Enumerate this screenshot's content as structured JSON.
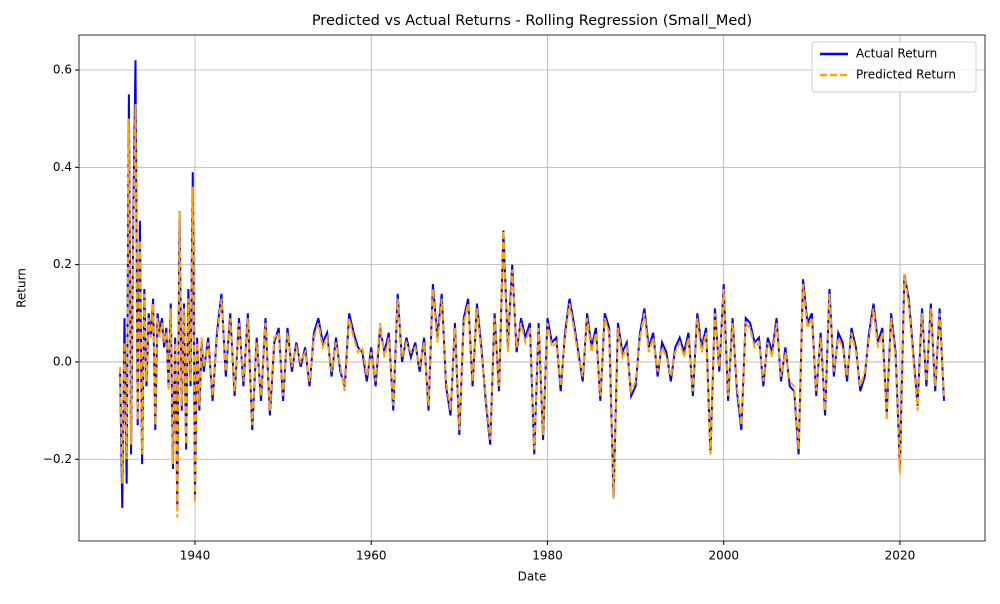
{
  "chart_data": {
    "type": "line",
    "title": "Predicted vs Actual Returns - Rolling Regression (Small_Med)",
    "x_label": "Date",
    "y_label": "Return",
    "x": [
      1931.5,
      1931.75,
      1932,
      1932.25,
      1932.5,
      1932.75,
      1933,
      1933.25,
      1933.5,
      1933.75,
      1934,
      1934.25,
      1934.5,
      1934.75,
      1935,
      1935.25,
      1935.5,
      1935.75,
      1936,
      1936.25,
      1936.5,
      1936.75,
      1937,
      1937.25,
      1937.5,
      1937.75,
      1938,
      1938.25,
      1938.5,
      1938.75,
      1939,
      1939.25,
      1939.5,
      1939.75,
      1940,
      1940.25,
      1940.5,
      1940.75,
      1941,
      1941.5,
      1942,
      1942.5,
      1943,
      1943.5,
      1944,
      1944.5,
      1945,
      1945.5,
      1946,
      1946.5,
      1947,
      1947.5,
      1948,
      1948.5,
      1949,
      1949.5,
      1950,
      1950.5,
      1951,
      1951.5,
      1952,
      1952.5,
      1953,
      1953.5,
      1954,
      1954.5,
      1955,
      1955.5,
      1956,
      1956.5,
      1957,
      1957.5,
      1958,
      1958.5,
      1959,
      1959.5,
      1960,
      1960.5,
      1961,
      1961.5,
      1962,
      1962.5,
      1963,
      1963.5,
      1964,
      1964.5,
      1965,
      1965.5,
      1966,
      1966.5,
      1967,
      1967.5,
      1968,
      1968.5,
      1969,
      1969.5,
      1970,
      1970.5,
      1971,
      1971.5,
      1972,
      1972.5,
      1973,
      1973.5,
      1974,
      1974.5,
      1975,
      1975.5,
      1976,
      1976.5,
      1977,
      1977.5,
      1978,
      1978.5,
      1979,
      1979.5,
      1980,
      1980.5,
      1981,
      1981.5,
      1982,
      1982.5,
      1983,
      1983.5,
      1984,
      1984.5,
      1985,
      1985.5,
      1986,
      1986.5,
      1987,
      1987.5,
      1988,
      1988.5,
      1989,
      1989.5,
      1990,
      1990.5,
      1991,
      1991.5,
      1992,
      1992.5,
      1993,
      1993.5,
      1994,
      1994.5,
      1995,
      1995.5,
      1996,
      1996.5,
      1997,
      1997.5,
      1998,
      1998.5,
      1999,
      1999.5,
      2000,
      2000.5,
      2001,
      2001.5,
      2002,
      2002.5,
      2003,
      2003.5,
      2004,
      2004.5,
      2005,
      2005.5,
      2006,
      2006.5,
      2007,
      2007.5,
      2008,
      2008.5,
      2009,
      2009.5,
      2010,
      2010.5,
      2011,
      2011.5,
      2012,
      2012.5,
      2013,
      2013.5,
      2014,
      2014.5,
      2015,
      2015.5,
      2016,
      2016.5,
      2017,
      2017.5,
      2018,
      2018.5,
      2019,
      2019.5,
      2020,
      2020.5,
      2021,
      2021.5,
      2022,
      2022.5,
      2023,
      2023.5,
      2024,
      2024.5,
      2025
    ],
    "series": [
      {
        "name": "Actual Return",
        "color": "#0000ff",
        "dash": false,
        "values": [
          -0.02,
          -0.3,
          0.09,
          -0.25,
          0.55,
          -0.19,
          0.3,
          0.62,
          -0.13,
          0.29,
          -0.21,
          0.15,
          -0.05,
          0.1,
          0.05,
          0.13,
          -0.14,
          0.1,
          0.06,
          0.09,
          0.03,
          0.07,
          -0.05,
          0.12,
          -0.22,
          0.05,
          -0.3,
          0.31,
          -0.1,
          0.12,
          -0.18,
          0.15,
          -0.05,
          0.39,
          -0.28,
          0.05,
          -0.1,
          0.04,
          -0.02,
          0.05,
          -0.08,
          0.06,
          0.14,
          -0.03,
          0.1,
          -0.07,
          0.09,
          -0.05,
          0.1,
          -0.14,
          0.05,
          -0.08,
          0.09,
          -0.11,
          0.04,
          0.07,
          -0.08,
          0.07,
          -0.02,
          0.04,
          -0.01,
          0.03,
          -0.05,
          0.06,
          0.09,
          0.04,
          0.06,
          -0.03,
          0.05,
          -0.02,
          -0.05,
          0.1,
          0.06,
          0.03,
          0.02,
          -0.04,
          0.03,
          -0.05,
          0.07,
          0.02,
          0.06,
          -0.1,
          0.14,
          0.0,
          0.05,
          0.01,
          0.04,
          -0.02,
          0.05,
          -0.1,
          0.16,
          0.05,
          0.14,
          -0.05,
          -0.11,
          0.08,
          -0.15,
          0.09,
          0.13,
          -0.05,
          0.12,
          0.03,
          -0.08,
          -0.17,
          0.1,
          -0.06,
          0.27,
          0.03,
          0.2,
          0.02,
          0.09,
          0.05,
          0.08,
          -0.19,
          0.08,
          -0.16,
          0.09,
          0.04,
          0.05,
          -0.06,
          0.06,
          0.13,
          0.08,
          0.02,
          -0.04,
          0.1,
          0.03,
          0.07,
          -0.08,
          0.1,
          0.07,
          -0.28,
          0.08,
          0.02,
          0.04,
          -0.07,
          -0.05,
          0.06,
          0.11,
          0.03,
          0.06,
          -0.03,
          0.04,
          0.02,
          -0.04,
          0.03,
          0.05,
          0.02,
          0.06,
          -0.07,
          0.1,
          0.03,
          0.07,
          -0.19,
          0.11,
          -0.02,
          0.16,
          -0.08,
          0.09,
          -0.06,
          -0.14,
          0.09,
          0.08,
          0.04,
          0.05,
          -0.05,
          0.05,
          0.02,
          0.09,
          -0.04,
          0.03,
          -0.05,
          -0.06,
          -0.19,
          0.17,
          0.08,
          0.1,
          -0.07,
          0.06,
          -0.11,
          0.15,
          -0.03,
          0.06,
          0.04,
          -0.04,
          0.07,
          0.03,
          -0.06,
          -0.03,
          0.06,
          0.12,
          0.04,
          0.07,
          -0.11,
          0.1,
          0.02,
          -0.22,
          0.18,
          0.13,
          0.02,
          -0.09,
          0.11,
          -0.05,
          0.12,
          -0.06,
          0.11,
          -0.08
        ]
      },
      {
        "name": "Predicted Return",
        "color": "#ffa500",
        "dash": true,
        "values": [
          -0.01,
          -0.25,
          0.04,
          -0.2,
          0.5,
          -0.17,
          0.28,
          0.53,
          -0.12,
          0.25,
          -0.19,
          0.14,
          -0.04,
          0.09,
          0.05,
          0.12,
          -0.13,
          0.09,
          0.05,
          0.08,
          0.04,
          0.06,
          -0.06,
          0.11,
          -0.21,
          0.04,
          -0.32,
          0.31,
          -0.09,
          0.11,
          -0.17,
          0.13,
          -0.04,
          0.36,
          -0.29,
          0.04,
          -0.09,
          0.05,
          -0.01,
          0.04,
          -0.07,
          0.05,
          0.13,
          -0.02,
          0.09,
          -0.06,
          0.08,
          -0.04,
          0.09,
          -0.13,
          0.04,
          -0.07,
          0.08,
          -0.1,
          0.05,
          0.06,
          -0.07,
          0.06,
          -0.01,
          0.03,
          0.0,
          0.02,
          -0.04,
          0.05,
          0.08,
          0.03,
          0.05,
          -0.02,
          0.04,
          -0.01,
          -0.06,
          0.09,
          0.05,
          0.02,
          0.03,
          -0.03,
          0.02,
          -0.04,
          0.08,
          0.01,
          0.05,
          -0.09,
          0.13,
          0.01,
          0.04,
          0.02,
          0.03,
          -0.01,
          0.04,
          -0.09,
          0.15,
          0.04,
          0.13,
          -0.04,
          -0.1,
          0.07,
          -0.14,
          0.08,
          0.12,
          -0.04,
          0.11,
          0.02,
          -0.07,
          -0.16,
          0.09,
          -0.05,
          0.27,
          0.02,
          0.19,
          0.03,
          0.08,
          0.04,
          0.07,
          -0.18,
          0.07,
          -0.15,
          0.08,
          0.03,
          0.04,
          -0.05,
          0.05,
          0.12,
          0.07,
          0.01,
          -0.03,
          0.09,
          0.02,
          0.06,
          -0.07,
          0.09,
          0.06,
          -0.28,
          0.07,
          0.01,
          0.03,
          -0.06,
          -0.04,
          0.05,
          0.1,
          0.02,
          0.05,
          -0.02,
          0.03,
          0.01,
          -0.03,
          0.02,
          0.04,
          0.01,
          0.05,
          -0.06,
          0.09,
          0.02,
          0.06,
          -0.19,
          0.1,
          -0.01,
          0.15,
          -0.07,
          0.08,
          -0.05,
          -0.13,
          0.08,
          0.07,
          0.03,
          0.04,
          -0.04,
          0.04,
          0.01,
          0.08,
          -0.03,
          0.02,
          -0.04,
          -0.05,
          -0.18,
          0.16,
          0.07,
          0.09,
          -0.06,
          0.05,
          -0.1,
          0.14,
          -0.02,
          0.05,
          0.03,
          -0.03,
          0.06,
          0.02,
          -0.05,
          -0.02,
          0.05,
          0.11,
          0.03,
          0.06,
          -0.12,
          0.09,
          0.01,
          -0.23,
          0.18,
          0.12,
          0.01,
          -0.1,
          0.1,
          -0.04,
          0.11,
          -0.05,
          0.1,
          -0.07
        ]
      }
    ],
    "xlim": [
      1926.84,
      2029.65
    ],
    "ylim": [
      -0.368,
      0.672
    ],
    "xticks": [
      1940,
      1960,
      1980,
      2000,
      2020
    ],
    "yticks": [
      {
        "value": -0.2,
        "label": "−0.2"
      },
      {
        "value": 0,
        "label": "0.0"
      },
      0.2,
      0.4,
      0.6
    ],
    "grid": true,
    "legend": "upper right"
  }
}
